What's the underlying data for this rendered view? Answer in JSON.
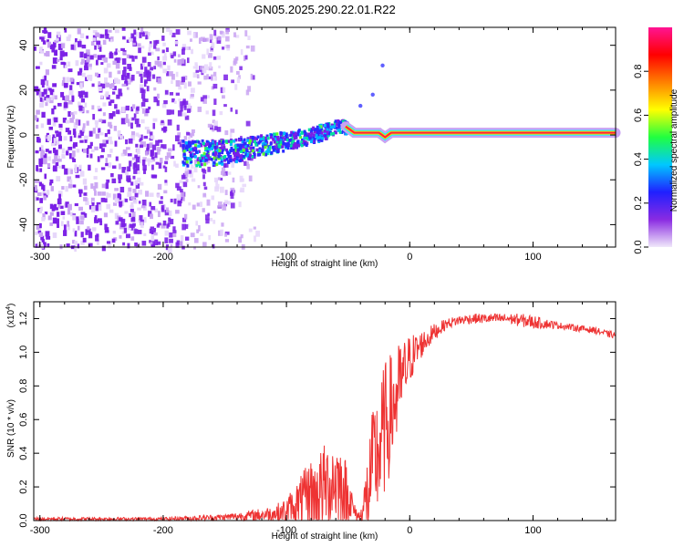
{
  "title": "GN05.2025.290.22.01.R22",
  "chart_data": [
    {
      "type": "heatmap",
      "name": "spectrogram",
      "xlabel": "Height of straight line (km)",
      "ylabel": "Frequency (Hz)",
      "xlim": [
        -305,
        167
      ],
      "ylim": [
        -50,
        48
      ],
      "xticks": [
        -300,
        -200,
        -100,
        0,
        100
      ],
      "yticks": [
        -40,
        -20,
        0,
        20,
        40
      ],
      "colorbar": {
        "label": "Normalized spectral amplitude",
        "range": [
          0,
          1
        ],
        "ticks": [
          0.0,
          0.2,
          0.4,
          0.6,
          0.8
        ],
        "tick_labels": [
          "0.0",
          "0.2",
          "0.4",
          "0.6",
          "0.8"
        ],
        "colors": [
          "#f0e8fa",
          "#8a2be2",
          "#2020ff",
          "#00c8ff",
          "#20ff40",
          "#ffff00",
          "#ff8000",
          "#ff0000",
          "#ff1493"
        ]
      },
      "tone_track": [
        [
          -180,
          -8
        ],
        [
          -150,
          -7
        ],
        [
          -120,
          -4
        ],
        [
          -90,
          -1
        ],
        [
          -70,
          2
        ],
        [
          -55,
          5
        ],
        [
          -45,
          1
        ],
        [
          -25,
          1
        ],
        [
          -20,
          -1
        ],
        [
          -15,
          1
        ],
        [
          0,
          1
        ],
        [
          50,
          1
        ],
        [
          100,
          1
        ],
        [
          167,
          1
        ]
      ],
      "noise_region_x": [
        -305,
        -125
      ]
    },
    {
      "type": "line",
      "name": "snr",
      "xlabel": "Height of straight line (km)",
      "ylabel": "SNR (10 * v/v)",
      "y_multiplier": "(x10",
      "y_multiplier_exp": "4",
      "y_multiplier_close": ")",
      "xlim": [
        -305,
        167
      ],
      "ylim": [
        0,
        1.3
      ],
      "xticks": [
        -300,
        -200,
        -100,
        0,
        100
      ],
      "yticks": [
        0.0,
        0.2,
        0.4,
        0.6,
        0.8,
        1.0,
        1.2
      ],
      "color": "#ee3333",
      "envelope": {
        "x": [
          -305,
          -200,
          -150,
          -130,
          -110,
          -100,
          -90,
          -80,
          -70,
          -60,
          -55,
          -50,
          -45,
          -40,
          -35,
          -30,
          -25,
          -20,
          -15,
          -10,
          -5,
          0,
          10,
          20,
          30,
          40,
          50,
          60,
          70,
          80,
          90,
          100,
          110,
          120,
          130,
          140,
          150,
          160,
          167
        ],
        "base": [
          0.01,
          0.01,
          0.02,
          0.03,
          0.04,
          0.06,
          0.1,
          0.15,
          0.2,
          0.25,
          0.18,
          0.15,
          0.05,
          0.02,
          0.12,
          0.32,
          0.42,
          0.55,
          0.65,
          0.75,
          0.86,
          0.96,
          1.05,
          1.12,
          1.17,
          1.19,
          1.2,
          1.2,
          1.2,
          1.2,
          1.19,
          1.18,
          1.17,
          1.16,
          1.15,
          1.14,
          1.13,
          1.11,
          1.1
        ],
        "amp": [
          0.01,
          0.01,
          0.02,
          0.03,
          0.05,
          0.08,
          0.15,
          0.22,
          0.25,
          0.3,
          0.25,
          0.2,
          0.05,
          0.03,
          0.25,
          0.35,
          0.4,
          0.4,
          0.35,
          0.3,
          0.22,
          0.15,
          0.08,
          0.05,
          0.03,
          0.03,
          0.03,
          0.03,
          0.03,
          0.03,
          0.04,
          0.04,
          0.03,
          0.02,
          0.02,
          0.02,
          0.02,
          0.02,
          0.02
        ]
      }
    }
  ]
}
